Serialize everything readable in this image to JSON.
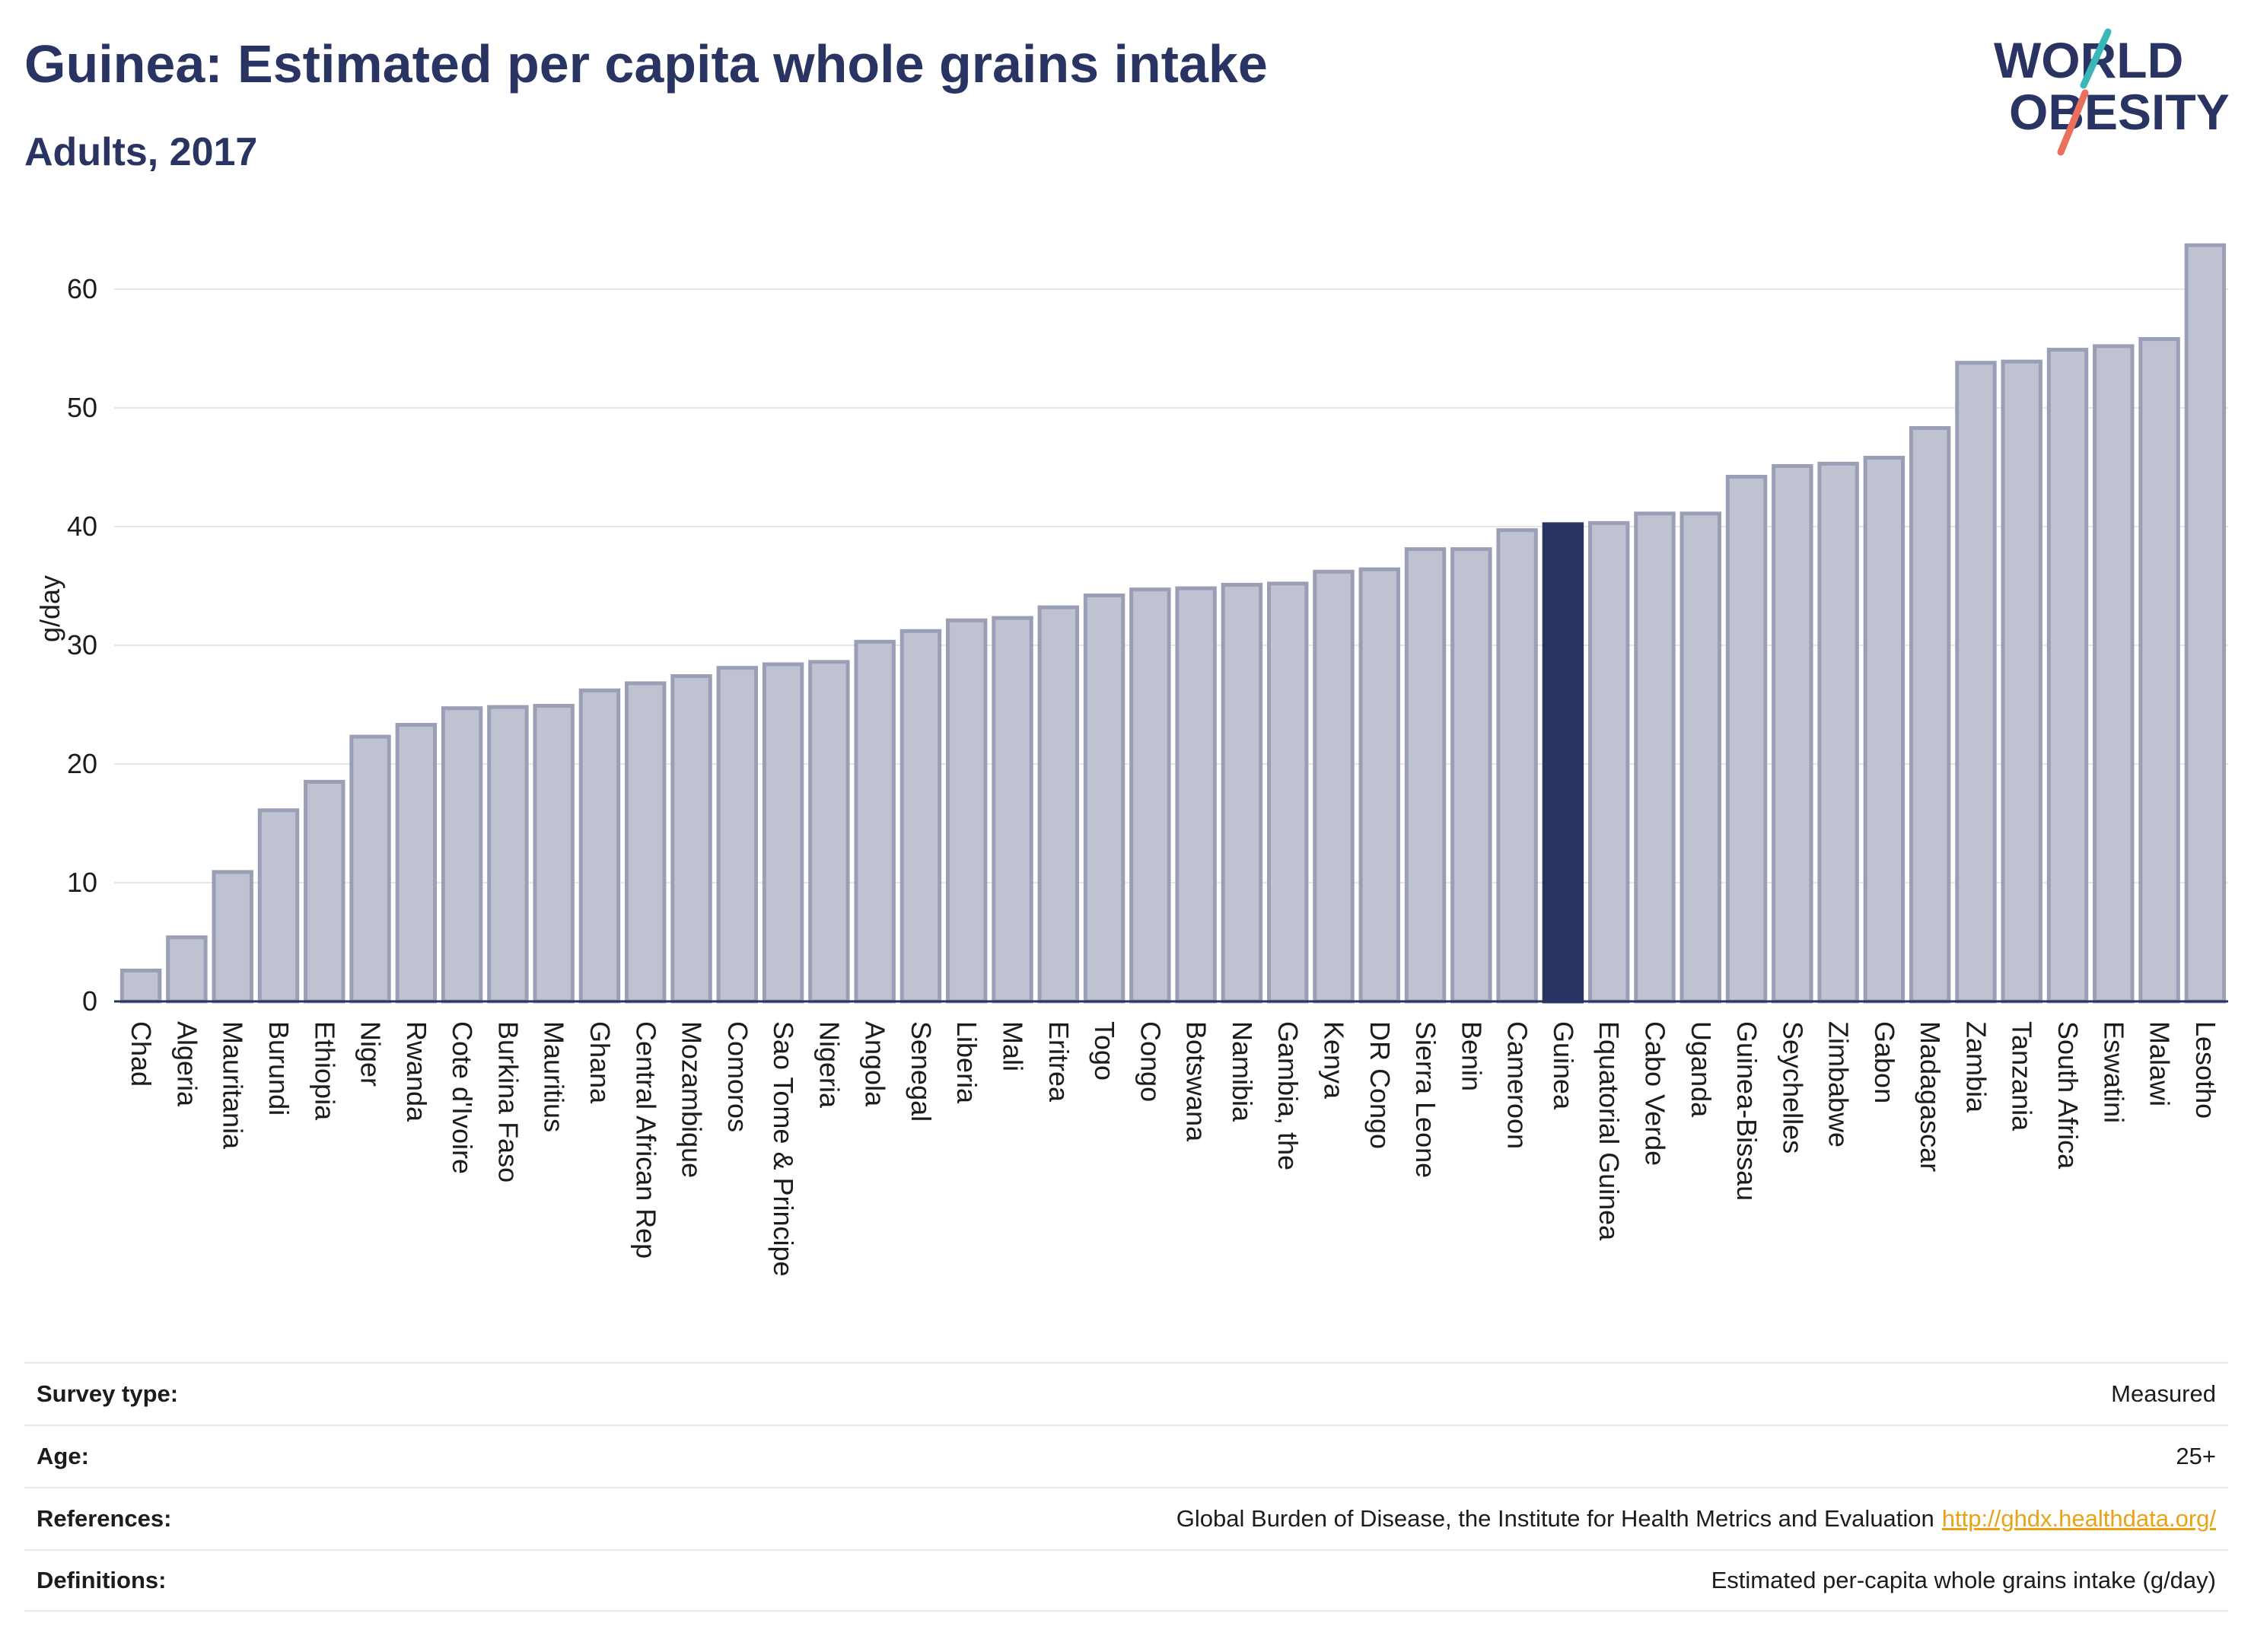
{
  "header": {
    "title": "Guinea: Estimated per capita whole grains intake",
    "subtitle": "Adults, 2017"
  },
  "logo": {
    "line1": "WORLD",
    "line2": "OBESITY",
    "icon": "world-obesity-slash-logo"
  },
  "colors": {
    "bar": "#bfc3d1",
    "bar_border": "#9a9fb5",
    "highlight": "#2a3462",
    "title": "#2a3462",
    "logo_teal": "#3bb6b9",
    "logo_coral": "#e8705d",
    "link": "#e8a317"
  },
  "chart_data": {
    "type": "bar",
    "ylabel": "g/day",
    "xlabel": "",
    "ylim": [
      0,
      65
    ],
    "yticks": [
      0,
      10,
      20,
      30,
      40,
      50,
      60
    ],
    "grid": true,
    "highlight": "Guinea",
    "categories": [
      "Chad",
      "Algeria",
      "Mauritania",
      "Burundi",
      "Ethiopia",
      "Niger",
      "Rwanda",
      "Cote d'Ivoire",
      "Burkina Faso",
      "Mauritius",
      "Ghana",
      "Central African Rep",
      "Mozambique",
      "Comoros",
      "Sao Tome & Principe",
      "Nigeria",
      "Angola",
      "Senegal",
      "Liberia",
      "Mali",
      "Eritrea",
      "Togo",
      "Congo",
      "Botswana",
      "Namibia",
      "Gambia, the",
      "Kenya",
      "DR Congo",
      "Sierra Leone",
      "Benin",
      "Cameroon",
      "Guinea",
      "Equatorial Guinea",
      "Cabo Verde",
      "Uganda",
      "Guinea-Bissau",
      "Seychelles",
      "Zimbabwe",
      "Gabon",
      "Madagascar",
      "Zambia",
      "Tanzania",
      "South Africa",
      "Eswatini",
      "Malawi",
      "Lesotho"
    ],
    "values": [
      2.6,
      5.4,
      10.9,
      16.1,
      18.5,
      22.3,
      23.3,
      24.7,
      24.8,
      24.9,
      26.2,
      26.8,
      27.4,
      28.1,
      28.4,
      28.6,
      30.3,
      31.2,
      32.1,
      32.3,
      33.2,
      34.2,
      34.7,
      34.8,
      35.1,
      35.2,
      36.2,
      36.4,
      38.1,
      38.1,
      39.7,
      40.2,
      40.3,
      41.1,
      41.1,
      44.2,
      45.1,
      45.3,
      45.8,
      48.3,
      53.8,
      53.9,
      54.9,
      55.2,
      55.8,
      63.7
    ]
  },
  "info": {
    "survey_type": {
      "label": "Survey type:",
      "value": "Measured"
    },
    "age": {
      "label": "Age:",
      "value": "25+"
    },
    "references": {
      "label": "References:",
      "value": "Global Burden of Disease, the Institute for Health Metrics and Evaluation",
      "link": "http://ghdx.healthdata.org/"
    },
    "definitions": {
      "label": "Definitions:",
      "value": "Estimated per-capita whole grains intake (g/day)"
    }
  }
}
